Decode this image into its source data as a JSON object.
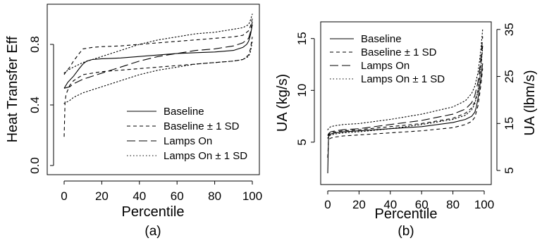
{
  "chart_data": [
    {
      "type": "line",
      "panel_label": "(a)",
      "xlabel": "Percentile",
      "ylabel": "Heat Transfer Eff",
      "xlim": [
        0,
        100
      ],
      "ylim": [
        0,
        1.0
      ],
      "xticks": [
        "0",
        "20",
        "40",
        "60",
        "80",
        "100"
      ],
      "yticks": [
        "0.0",
        "0.4",
        "0.8"
      ],
      "legend": {
        "position": "bottom-right",
        "entries": [
          "Baseline",
          "Baseline ± 1 SD",
          "Lamps On",
          "Lamps On ± 1 SD"
        ]
      },
      "series": [
        {
          "name": "Baseline",
          "style": "solid",
          "x": [
            0,
            2,
            5,
            8,
            10,
            12,
            15,
            20,
            30,
            40,
            50,
            60,
            70,
            80,
            90,
            95,
            97,
            98,
            99,
            100
          ],
          "y": [
            0.51,
            0.55,
            0.59,
            0.64,
            0.67,
            0.69,
            0.7,
            0.705,
            0.71,
            0.72,
            0.73,
            0.74,
            0.745,
            0.75,
            0.76,
            0.78,
            0.8,
            0.82,
            0.86,
            0.93
          ]
        },
        {
          "name": "Baseline + 1 SD",
          "style": "dashed",
          "x": [
            0,
            1,
            3,
            5,
            8,
            10,
            15,
            20,
            30,
            40,
            50,
            60,
            70,
            80,
            90,
            95,
            98,
            99,
            100
          ],
          "y": [
            0.6,
            0.62,
            0.65,
            0.69,
            0.74,
            0.77,
            0.78,
            0.785,
            0.79,
            0.8,
            0.81,
            0.82,
            0.83,
            0.84,
            0.85,
            0.86,
            0.89,
            0.92,
            0.97
          ]
        },
        {
          "name": "Baseline - 1 SD",
          "style": "dashed",
          "x": [
            0,
            0.5,
            1,
            3,
            5,
            10,
            20,
            30,
            40,
            50,
            60,
            70,
            80,
            90,
            95,
            98,
            99,
            100
          ],
          "y": [
            0.19,
            0.42,
            0.47,
            0.53,
            0.56,
            0.6,
            0.62,
            0.63,
            0.64,
            0.65,
            0.66,
            0.67,
            0.68,
            0.69,
            0.7,
            0.73,
            0.77,
            0.85
          ]
        },
        {
          "name": "Lamps On",
          "style": "longdash",
          "x": [
            0,
            3,
            5,
            10,
            20,
            30,
            40,
            50,
            60,
            70,
            80,
            90,
            95,
            98,
            99,
            100
          ],
          "y": [
            0.51,
            0.52,
            0.54,
            0.57,
            0.61,
            0.65,
            0.69,
            0.72,
            0.74,
            0.76,
            0.77,
            0.79,
            0.81,
            0.84,
            0.88,
            0.95
          ]
        },
        {
          "name": "Lamps On + 1 SD",
          "style": "dotted",
          "x": [
            0,
            2,
            5,
            10,
            20,
            30,
            40,
            50,
            60,
            70,
            80,
            90,
            95,
            98,
            99,
            100
          ],
          "y": [
            0.61,
            0.63,
            0.65,
            0.68,
            0.72,
            0.76,
            0.8,
            0.83,
            0.85,
            0.87,
            0.88,
            0.9,
            0.91,
            0.93,
            0.96,
            1.0
          ]
        },
        {
          "name": "Lamps On - 1 SD",
          "style": "dotted",
          "x": [
            0,
            3,
            5,
            10,
            20,
            30,
            40,
            50,
            60,
            70,
            80,
            90,
            95,
            98,
            99,
            100
          ],
          "y": [
            0.41,
            0.43,
            0.45,
            0.48,
            0.52,
            0.56,
            0.6,
            0.63,
            0.65,
            0.67,
            0.68,
            0.69,
            0.7,
            0.72,
            0.75,
            0.82
          ]
        }
      ]
    },
    {
      "type": "line",
      "panel_label": "(b)",
      "xlabel": "Percentile",
      "ylabel": "UA (kg/s)",
      "ylabel_right": "UA (lbm/s)",
      "xlim": [
        0,
        100
      ],
      "ylim": [
        2,
        16
      ],
      "ylim_right": [
        4.41,
        35.27
      ],
      "xticks": [
        "0",
        "20",
        "40",
        "60",
        "80",
        "100"
      ],
      "yticks": [
        "5",
        "10",
        "15"
      ],
      "yticks_right": [
        "5",
        "15",
        "25",
        "35"
      ],
      "legend": {
        "position": "top-left",
        "entries": [
          "Baseline",
          "Baseline ± 1 SD",
          "Lamps On",
          "Lamps On ± 1 SD"
        ]
      },
      "series": [
        {
          "name": "Baseline",
          "style": "solid",
          "x": [
            0,
            0.5,
            1,
            2,
            5,
            10,
            20,
            40,
            60,
            80,
            88,
            92,
            94,
            95,
            96,
            97,
            98,
            99
          ],
          "y": [
            2.0,
            5.5,
            5.7,
            5.8,
            5.9,
            6.0,
            6.1,
            6.3,
            6.5,
            6.9,
            7.2,
            7.5,
            7.9,
            8.4,
            9.2,
            10.2,
            11.3,
            12.6
          ]
        },
        {
          "name": "Baseline + 1 SD",
          "style": "dashed",
          "x": [
            0,
            1,
            2,
            5,
            10,
            20,
            40,
            60,
            80,
            88,
            92,
            94,
            96,
            97,
            98,
            99
          ],
          "y": [
            5.6,
            5.8,
            5.9,
            6.0,
            6.1,
            6.2,
            6.5,
            6.8,
            7.3,
            7.8,
            8.3,
            8.9,
            10.0,
            11.1,
            12.5,
            14.3
          ]
        },
        {
          "name": "Baseline - 1 SD",
          "style": "dashed",
          "x": [
            0,
            0.5,
            1,
            2,
            5,
            10,
            20,
            40,
            60,
            80,
            88,
            92,
            94,
            96,
            97,
            98,
            99
          ],
          "y": [
            3.5,
            5.2,
            5.3,
            5.4,
            5.5,
            5.6,
            5.7,
            5.9,
            6.1,
            6.4,
            6.7,
            7.0,
            7.4,
            8.5,
            9.5,
            10.7,
            12.1
          ]
        },
        {
          "name": "Lamps On",
          "style": "longdash",
          "x": [
            0,
            1,
            2,
            5,
            10,
            20,
            40,
            60,
            80,
            88,
            92,
            94,
            96,
            97,
            98,
            99
          ],
          "y": [
            5.7,
            5.9,
            6.0,
            6.1,
            6.2,
            6.3,
            6.7,
            7.1,
            7.7,
            8.2,
            8.8,
            9.5,
            10.8,
            11.9,
            13.3,
            15.2
          ]
        },
        {
          "name": "Lamps On + 1 SD",
          "style": "dotted",
          "x": [
            0,
            1,
            2,
            5,
            10,
            20,
            40,
            60,
            80,
            88,
            92,
            94,
            96,
            97,
            98,
            99
          ],
          "y": [
            6.2,
            6.4,
            6.5,
            6.6,
            6.7,
            6.8,
            7.2,
            7.7,
            8.4,
            9.0,
            9.7,
            10.4,
            11.7,
            12.8,
            14.2,
            15.9
          ]
        },
        {
          "name": "Lamps On - 1 SD",
          "style": "dotted",
          "x": [
            0,
            1,
            2,
            5,
            10,
            20,
            40,
            60,
            80,
            88,
            92,
            94,
            96,
            97,
            98,
            99
          ],
          "y": [
            5.4,
            5.6,
            5.7,
            5.8,
            5.9,
            6.0,
            6.3,
            6.7,
            7.2,
            7.6,
            8.1,
            8.7,
            9.9,
            11.0,
            12.4,
            14.1
          ]
        }
      ]
    }
  ]
}
